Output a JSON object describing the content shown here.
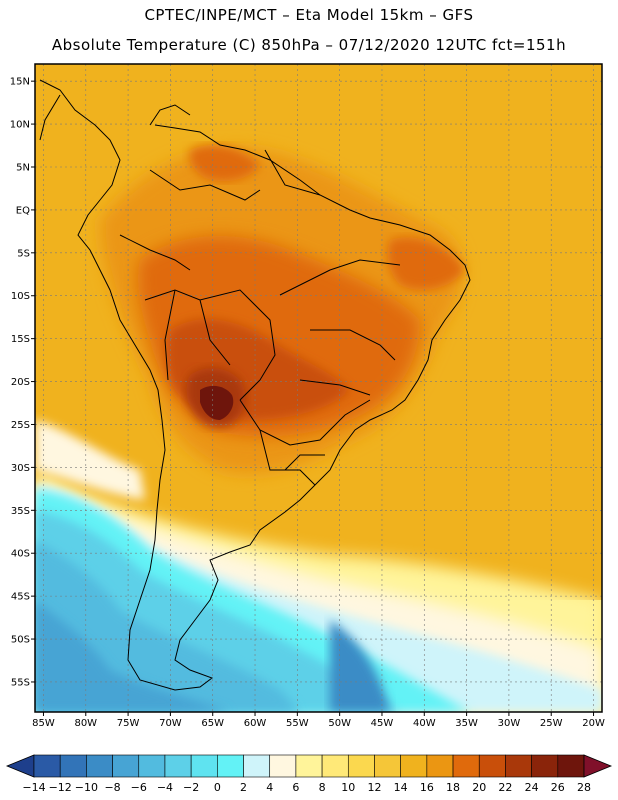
{
  "header": {
    "line1": "CPTEC/INPE/MCT –  Eta Model 15km – GFS",
    "line2": "Absolute Temperature (C) 850hPa – 07/12/2020 12UTC fct=151h"
  },
  "lat_labels": [
    "15N",
    "10N",
    "5N",
    "EQ",
    "5S",
    "10S",
    "15S",
    "20S",
    "25S",
    "30S",
    "35S",
    "40S",
    "45S",
    "50S",
    "55S"
  ],
  "lon_labels": [
    "85W",
    "80W",
    "75W",
    "70W",
    "65W",
    "60W",
    "55W",
    "50W",
    "45W",
    "40W",
    "35W",
    "30W",
    "25W",
    "20W"
  ],
  "colorbar": {
    "labels": [
      "-14",
      "-12",
      "-10",
      "-8",
      "-6",
      "-4",
      "-2",
      "0",
      "2",
      "4",
      "6",
      "8",
      "10",
      "12",
      "14",
      "16",
      "18",
      "20",
      "22",
      "24",
      "26",
      "28"
    ],
    "colors": [
      "#1e3f8c",
      "#2a5aa6",
      "#3274b8",
      "#3b8cc6",
      "#47a4d4",
      "#52bbdf",
      "#5dd0e8",
      "#5fe3f0",
      "#63f2f6",
      "#cff4fa",
      "#fff7e0",
      "#fff49a",
      "#ffe978",
      "#fbd84e",
      "#f5c638",
      "#f0b21e",
      "#eb9612",
      "#e06a0c",
      "#c94f0a",
      "#a9380a",
      "#8a240a",
      "#6e150c",
      "#80102a"
    ]
  }
}
